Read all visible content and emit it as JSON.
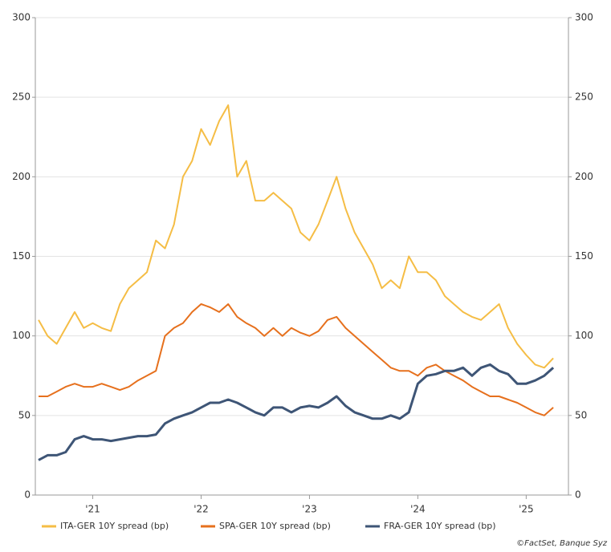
{
  "chart_data": {
    "type": "line",
    "source": "©FactSet, Banque Syz",
    "x": [
      2021.0,
      2021.083,
      2021.167,
      2021.25,
      2021.333,
      2021.417,
      2021.5,
      2021.583,
      2021.667,
      2021.75,
      2021.833,
      2021.917,
      2022.0,
      2022.083,
      2022.167,
      2022.25,
      2022.333,
      2022.417,
      2022.5,
      2022.583,
      2022.667,
      2022.75,
      2022.833,
      2022.917,
      2023.0,
      2023.083,
      2023.167,
      2023.25,
      2023.333,
      2023.417,
      2023.5,
      2023.583,
      2023.667,
      2023.75,
      2023.833,
      2023.917,
      2024.0,
      2024.083,
      2024.167,
      2024.25,
      2024.333,
      2024.417,
      2024.5,
      2024.583,
      2024.667,
      2024.75,
      2024.833,
      2024.917,
      2025.0,
      2025.083,
      2025.167,
      2025.25,
      2025.333,
      2025.417,
      2025.5,
      2025.583,
      2025.667,
      2025.75
    ],
    "series": [
      {
        "name": "ITA-GER 10Y spread (bp)",
        "color": "#f5bd45",
        "values": [
          110,
          100,
          95,
          105,
          115,
          105,
          108,
          105,
          103,
          120,
          130,
          135,
          140,
          160,
          155,
          170,
          200,
          210,
          230,
          220,
          235,
          245,
          200,
          210,
          185,
          185,
          190,
          185,
          180,
          165,
          160,
          170,
          185,
          200,
          180,
          165,
          155,
          145,
          130,
          135,
          130,
          150,
          140,
          140,
          135,
          125,
          120,
          115,
          112,
          110,
          115,
          120,
          105,
          95,
          88,
          82,
          80,
          86
        ]
      },
      {
        "name": "SPA-GER 10Y spread (bp)",
        "color": "#e6701d",
        "values": [
          62,
          62,
          65,
          68,
          70,
          68,
          68,
          70,
          68,
          66,
          68,
          72,
          75,
          78,
          100,
          105,
          108,
          115,
          120,
          118,
          115,
          120,
          112,
          108,
          105,
          100,
          105,
          100,
          105,
          102,
          100,
          103,
          110,
          112,
          105,
          100,
          95,
          90,
          85,
          80,
          78,
          78,
          75,
          80,
          82,
          78,
          75,
          72,
          68,
          65,
          62,
          62,
          60,
          58,
          55,
          52,
          50,
          55
        ]
      },
      {
        "name": "FRA-GER 10Y spread (bp)",
        "color": "#3e5576",
        "values": [
          22,
          25,
          25,
          27,
          35,
          37,
          35,
          35,
          34,
          35,
          36,
          37,
          37,
          38,
          45,
          48,
          50,
          52,
          55,
          58,
          58,
          60,
          58,
          55,
          52,
          50,
          55,
          55,
          52,
          55,
          56,
          55,
          58,
          62,
          56,
          52,
          50,
          48,
          48,
          50,
          48,
          52,
          70,
          75,
          76,
          78,
          78,
          80,
          75,
          80,
          82,
          78,
          76,
          70,
          70,
          72,
          75,
          80
        ]
      }
    ],
    "xlim": [
      2020.97,
      2025.89
    ],
    "xticks": [
      {
        "value": 2021.5,
        "label": "'21"
      },
      {
        "value": 2022.5,
        "label": "'22"
      },
      {
        "value": 2023.5,
        "label": "'23"
      },
      {
        "value": 2024.5,
        "label": "'24"
      },
      {
        "value": 2025.5,
        "label": "'25"
      }
    ],
    "ylim": [
      0,
      300
    ],
    "yticks": [
      0,
      50,
      100,
      150,
      200,
      250,
      300
    ],
    "y2lim": [
      0,
      300
    ],
    "y2ticks": [
      0,
      50,
      100,
      150,
      200,
      250,
      300
    ],
    "grid": true
  }
}
